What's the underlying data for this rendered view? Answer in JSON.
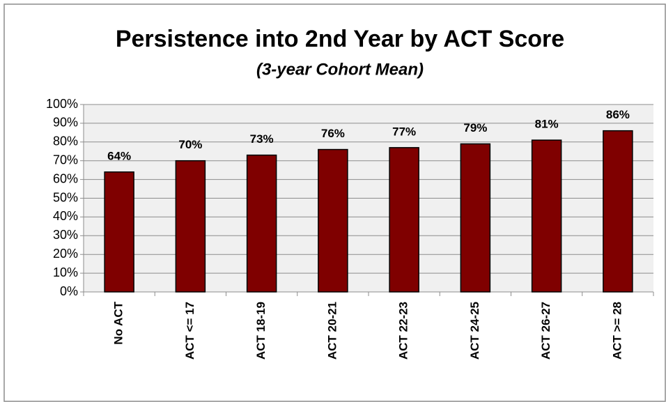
{
  "chart_data": {
    "type": "bar",
    "title": "Persistence into 2nd Year by ACT Score",
    "subtitle": "(3-year Cohort Mean)",
    "categories": [
      "No ACT",
      "ACT <= 17",
      "ACT 18-19",
      "ACT 20-21",
      "ACT 22-23",
      "ACT 24-25",
      "ACT 26-27",
      "ACT >= 28"
    ],
    "values": [
      64,
      70,
      73,
      76,
      77,
      79,
      81,
      86
    ],
    "value_labels": [
      "64%",
      "70%",
      "73%",
      "76%",
      "77%",
      "79%",
      "81%",
      "86%"
    ],
    "color": "#7f0000",
    "ylim": [
      0,
      100
    ],
    "yticks": [
      {
        "value": 0,
        "label": "0%"
      },
      {
        "value": 10,
        "label": "10%"
      },
      {
        "value": 20,
        "label": "20%"
      },
      {
        "value": 30,
        "label": "30%"
      },
      {
        "value": 40,
        "label": "40%"
      },
      {
        "value": 50,
        "label": "50%"
      },
      {
        "value": 60,
        "label": "60%"
      },
      {
        "value": 70,
        "label": "70%"
      },
      {
        "value": 80,
        "label": "80%"
      },
      {
        "value": 90,
        "label": "90%"
      },
      {
        "value": 100,
        "label": "100%"
      }
    ],
    "grid": true
  }
}
